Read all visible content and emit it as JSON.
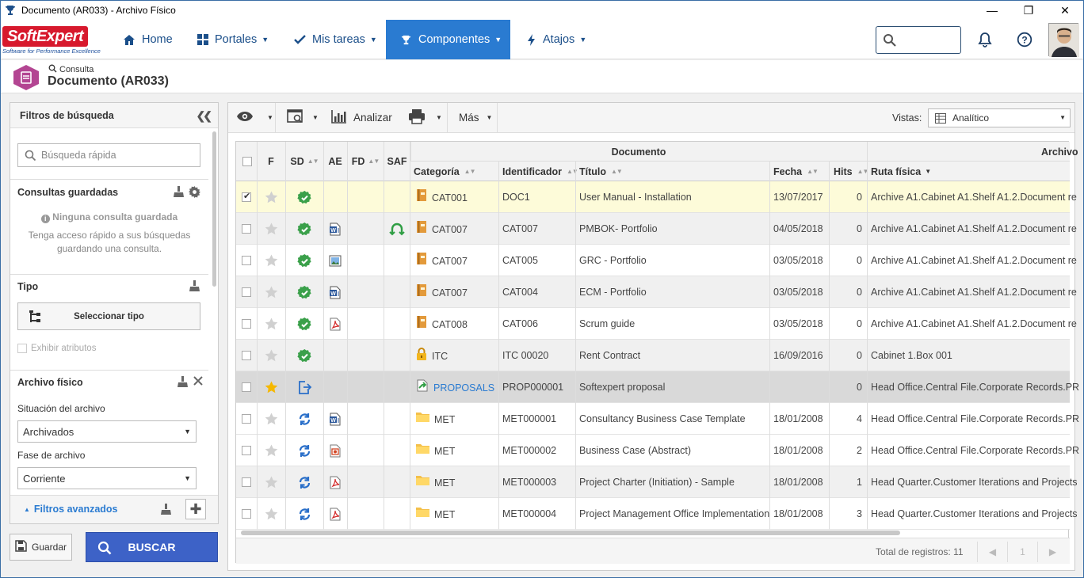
{
  "window": {
    "title": "Documento (AR033) - Archivo Físico",
    "min": "—",
    "max": "❐",
    "close": "✕"
  },
  "brand": {
    "name_a": "Soft",
    "name_b": "Expert",
    "tagline": "Software for Performance Excellence"
  },
  "nav": {
    "items": [
      {
        "label": "Home",
        "icon": "home-icon"
      },
      {
        "label": "Portales",
        "icon": "grid-icon"
      },
      {
        "label": "Mis tareas",
        "icon": "check-icon"
      },
      {
        "label": "Componentes",
        "icon": "trophy-icon"
      },
      {
        "label": "Atajos",
        "icon": "bolt-icon"
      }
    ],
    "accent": "#2a7bd1"
  },
  "page": {
    "subtitle": "Consulta",
    "title": "Documento (AR033)",
    "icon_color": "#b34592"
  },
  "filters": {
    "title": "Filtros de búsqueda",
    "quick_search_placeholder": "Búsqueda rápida",
    "saved_title": "Consultas guardadas",
    "saved_empty": "Ninguna consulta guardada",
    "saved_hint_1": "Tenga acceso rápido a sus búsquedas",
    "saved_hint_2": "guardando una consulta.",
    "type_title": "Tipo",
    "type_button": "Seleccionar tipo",
    "show_attributes": "Exhibir atributos",
    "archive_title": "Archivo físico",
    "status_label": "Situación del archivo",
    "status_value": "Archivados",
    "phase_label": "Fase de archivo",
    "phase_value": "Corriente",
    "advanced": "Filtros avanzados"
  },
  "actions": {
    "save": "Guardar",
    "search": "BUSCAR",
    "search_color": "#3d62c7"
  },
  "toolbar": {
    "analyze": "Analizar",
    "more": "Más",
    "views_label": "Vistas:",
    "views_value": "Analítico"
  },
  "grid": {
    "group_document": "Documento",
    "group_archive": "Archivo",
    "columns": [
      "F",
      "SD",
      "AE",
      "FD",
      "SAF",
      "Categoría",
      "Identificador",
      "Título",
      "Fecha",
      "Hits",
      "Ruta física"
    ],
    "rows": [
      {
        "checked": true,
        "star": false,
        "sd": "approved",
        "ae": "",
        "saf": "",
        "caticon": "book",
        "cat": "CAT001",
        "id": "DOC1",
        "title": "User Manual - Installation",
        "date": "13/07/2017",
        "hits": "0",
        "path": "Archive A1.Cabinet A1.Shelf A1.2.Document re",
        "style": "sel"
      },
      {
        "checked": false,
        "star": false,
        "sd": "approved",
        "ae": "word",
        "saf": "loan",
        "caticon": "book",
        "cat": "CAT007",
        "id": "CAT007",
        "title": "PMBOK- Portfolio",
        "date": "04/05/2018",
        "hits": "0",
        "path": "Archive A1.Cabinet A1.Shelf A1.2.Document re",
        "style": "odd"
      },
      {
        "checked": false,
        "star": false,
        "sd": "approved",
        "ae": "image",
        "saf": "",
        "caticon": "book",
        "cat": "CAT007",
        "id": "CAT005",
        "title": "GRC - Portfolio",
        "date": "03/05/2018",
        "hits": "0",
        "path": "Archive A1.Cabinet A1.Shelf A1.2.Document re",
        "style": "even"
      },
      {
        "checked": false,
        "star": false,
        "sd": "approved",
        "ae": "word",
        "saf": "",
        "caticon": "book",
        "cat": "CAT007",
        "id": "CAT004",
        "title": "ECM - Portfolio",
        "date": "03/05/2018",
        "hits": "0",
        "path": "Archive A1.Cabinet A1.Shelf A1.2.Document re",
        "style": "odd"
      },
      {
        "checked": false,
        "star": false,
        "sd": "approved",
        "ae": "pdf",
        "saf": "",
        "caticon": "book",
        "cat": "CAT008",
        "id": "CAT006",
        "title": "Scrum guide",
        "date": "03/05/2018",
        "hits": "0",
        "path": "Archive A1.Cabinet A1.Shelf A1.2.Document re",
        "style": "even"
      },
      {
        "checked": false,
        "star": false,
        "sd": "approved",
        "ae": "",
        "saf": "",
        "caticon": "lock",
        "cat": "ITC",
        "id": "ITC 00020",
        "title": "Rent Contract",
        "date": "16/09/2016",
        "hits": "0",
        "path": "Cabinet 1.Box 001",
        "style": "odd"
      },
      {
        "checked": false,
        "star": true,
        "sd": "export",
        "ae": "",
        "saf": "",
        "caticon": "proposal",
        "cat": "PROPOSALS",
        "id": "PROP000001",
        "title": "Softexpert proposal",
        "date": "",
        "hits": "0",
        "path": "Head Office.Central File.Corporate Records.PR",
        "style": "hl"
      },
      {
        "checked": false,
        "star": false,
        "sd": "review",
        "ae": "word",
        "saf": "",
        "caticon": "folder",
        "cat": "MET",
        "id": "MET000001",
        "title": "Consultancy Business Case Template",
        "date": "18/01/2008",
        "hits": "4",
        "path": "Head Office.Central File.Corporate Records.PR",
        "style": "even"
      },
      {
        "checked": false,
        "star": false,
        "sd": "review",
        "ae": "ppt",
        "saf": "",
        "caticon": "folder",
        "cat": "MET",
        "id": "MET000002",
        "title": "Business Case (Abstract)",
        "date": "18/01/2008",
        "hits": "2",
        "path": "Head Office.Central File.Corporate Records.PR",
        "style": "even"
      },
      {
        "checked": false,
        "star": false,
        "sd": "review",
        "ae": "pdf",
        "saf": "",
        "caticon": "folder",
        "cat": "MET",
        "id": "MET000003",
        "title": "Project Charter (Initiation) - Sample",
        "date": "18/01/2008",
        "hits": "1",
        "path": "Head Quarter.Customer Iterations and Projects",
        "style": "odd"
      },
      {
        "checked": false,
        "star": false,
        "sd": "review",
        "ae": "pdf",
        "saf": "",
        "caticon": "folder",
        "cat": "MET",
        "id": "MET000004",
        "title": "Project Management Office Implementation",
        "date": "18/01/2008",
        "hits": "3",
        "path": "Head Quarter.Customer Iterations and Projects",
        "style": "even"
      }
    ],
    "footer_total": "Total de registros: 11",
    "page": "1"
  }
}
